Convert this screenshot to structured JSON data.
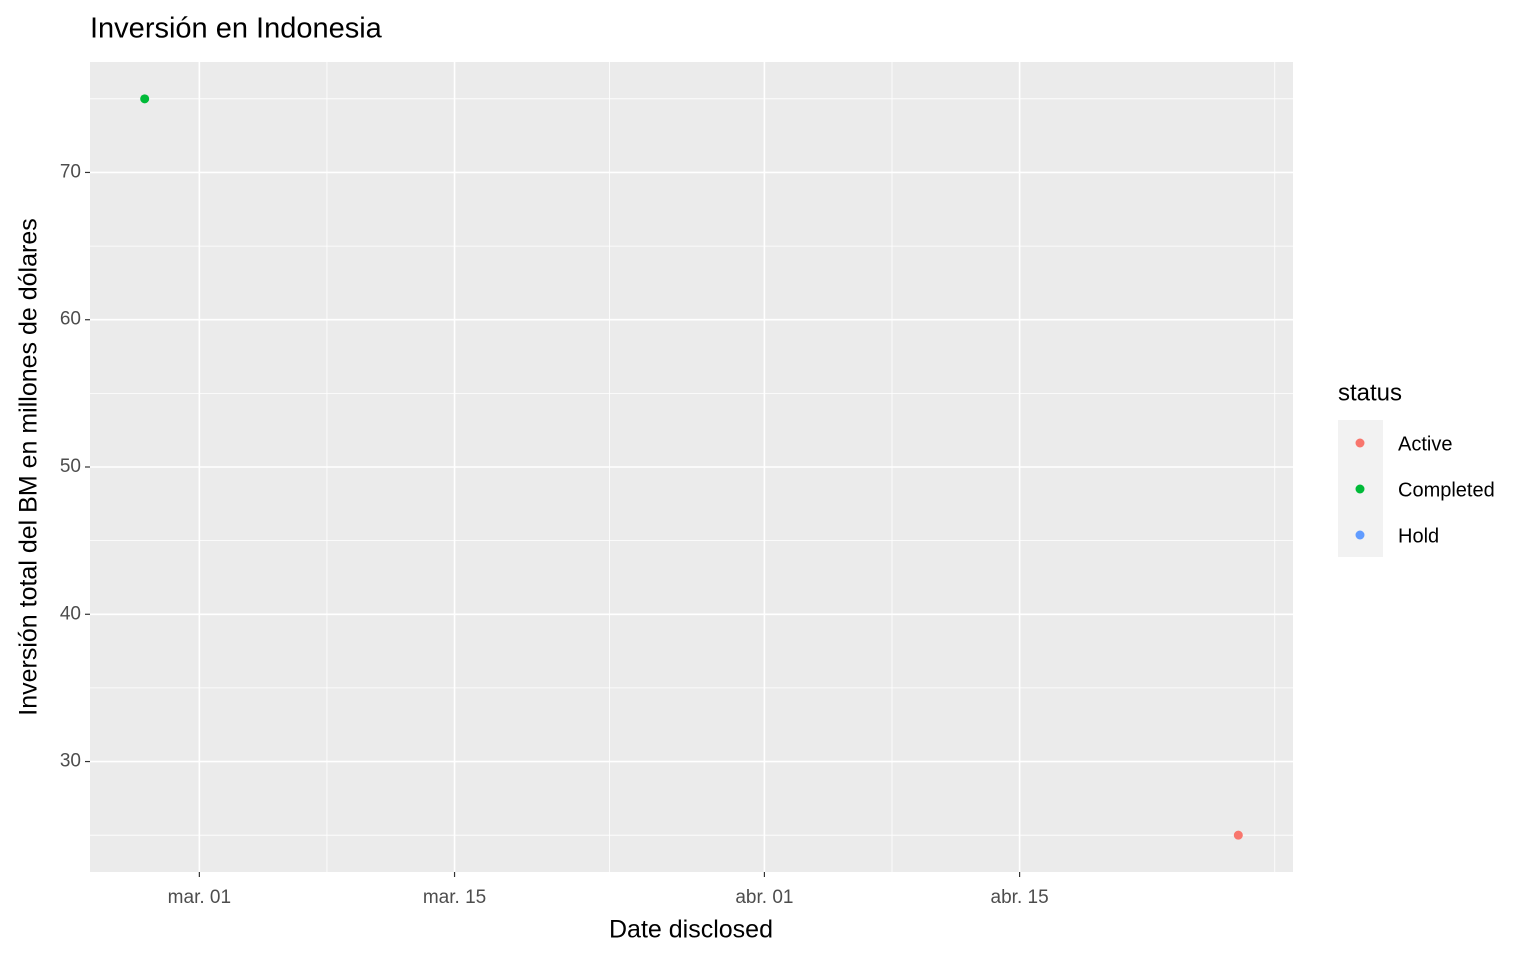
{
  "chart_data": {
    "type": "scatter",
    "title": "Inversión en Indonesia",
    "x_label": "Date disclosed",
    "y_label": "Inversión total del BM en millones de dólares",
    "legend_title": "status",
    "legend_position": "right",
    "grid": true,
    "xlim": [
      "02-23",
      "04-30"
    ],
    "xticks": [
      {
        "value": "03-01",
        "label": "mar. 01"
      },
      {
        "value": "03-15",
        "label": "mar. 15"
      },
      {
        "value": "04-01",
        "label": "abr. 01"
      },
      {
        "value": "04-15",
        "label": "abr. 15"
      }
    ],
    "ylim": [
      22.5,
      77.5
    ],
    "yticks": [
      30,
      40,
      50,
      60,
      70
    ],
    "series": [
      {
        "name": "Active",
        "color": "#F8766D",
        "x": [
          "04-27"
        ],
        "values": [
          25
        ]
      },
      {
        "name": "Completed",
        "color": "#00BA38",
        "x": [
          "02-26"
        ],
        "values": [
          75
        ]
      },
      {
        "name": "Hold",
        "color": "#619CFF",
        "x": [],
        "values": []
      }
    ]
  }
}
